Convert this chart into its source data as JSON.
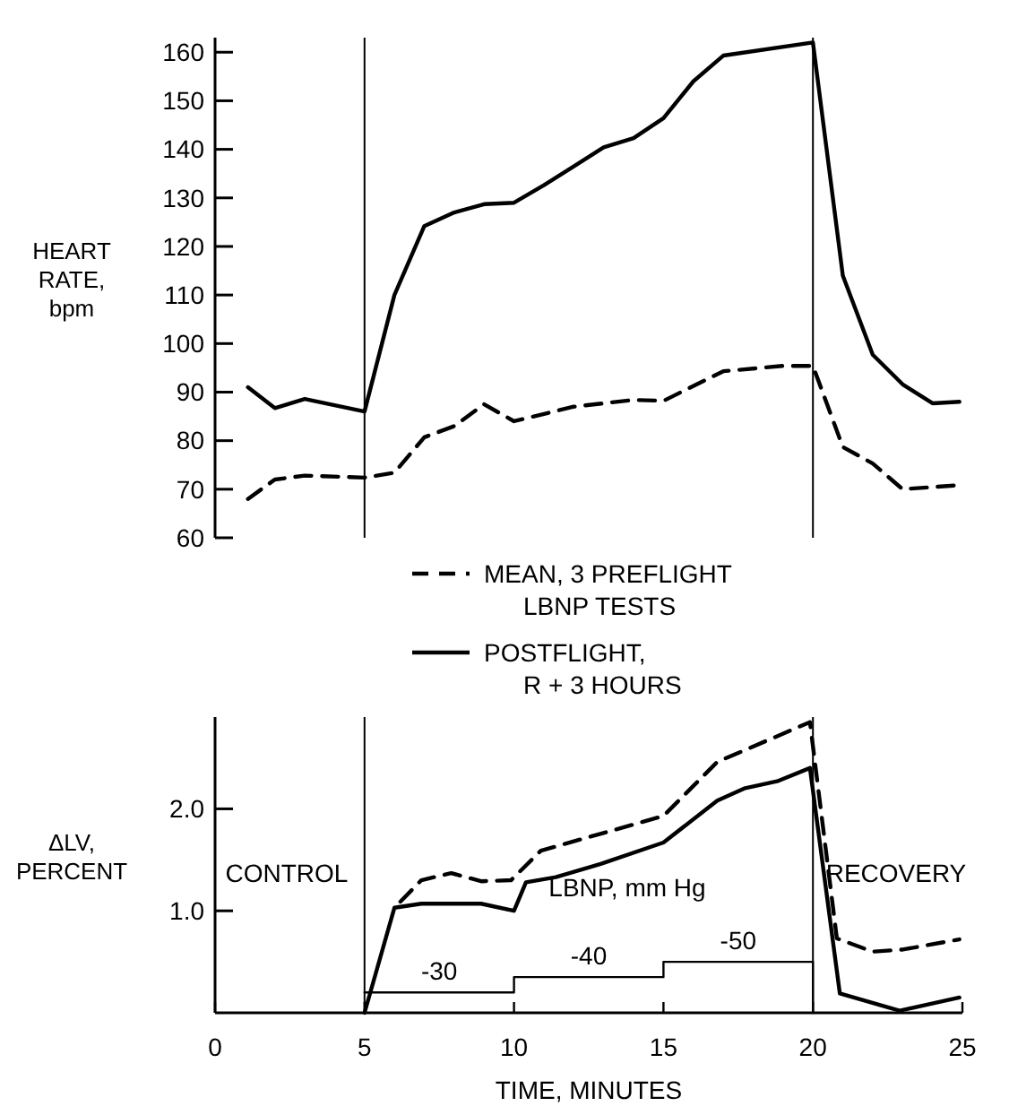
{
  "chart_data": [
    {
      "type": "line",
      "ylabel": "HEART RATE, bpm",
      "xlim": [
        0,
        25
      ],
      "ylim": [
        60,
        163
      ],
      "yticks": [
        60,
        70,
        80,
        90,
        100,
        110,
        120,
        130,
        140,
        150,
        160
      ],
      "tick_labels": "y",
      "legend": "bottom",
      "marker": "none",
      "ref_lines": [
        {
          "axis": "x",
          "value": 5,
          "color": "#000000"
        },
        {
          "axis": "x",
          "value": 20,
          "color": "#000000"
        }
      ],
      "series": [
        {
          "name": "MEAN, 3 PREFLIGHT\nLBNP TESTS",
          "color": "#000000",
          "line_style": "dashed",
          "x": [
            1.1,
            2,
            3,
            5,
            6,
            7,
            8,
            9,
            10,
            12,
            14,
            15,
            17,
            19,
            20,
            21,
            22,
            23,
            24.8
          ],
          "values": [
            68,
            72,
            72.8,
            72.4,
            73.4,
            80.7,
            83,
            87.5,
            84,
            87,
            88.4,
            88.2,
            94.3,
            95.4,
            95.4,
            78.7,
            75.3,
            70,
            70.8
          ]
        },
        {
          "name": "POSTFLIGHT,\nR + 3 HOURS",
          "color": "#000000",
          "line_style": "solid",
          "x": [
            1.1,
            2,
            3,
            5,
            6,
            7,
            8,
            9,
            10,
            11,
            12,
            13,
            14,
            15,
            16,
            17,
            20,
            21,
            22,
            23,
            24,
            24.9
          ],
          "values": [
            91,
            86.7,
            88.6,
            86,
            110,
            124.2,
            127,
            128.7,
            129,
            132.6,
            136.5,
            140.4,
            142.3,
            146.4,
            154,
            159.3,
            162,
            114,
            97.7,
            91.6,
            87.7,
            88
          ]
        }
      ]
    },
    {
      "type": "line",
      "xlabel": "TIME, MINUTES",
      "ylabel": "ΔLV, PERCENT",
      "xlim": [
        0,
        25
      ],
      "xticks": [
        0,
        5,
        10,
        15,
        20,
        25
      ],
      "ylim": [
        0,
        2.9
      ],
      "yticks": [
        {
          "value": 1,
          "label": "1.0"
        },
        {
          "value": 2,
          "label": "2.0"
        }
      ],
      "marker": "none",
      "ref_lines": [
        {
          "axis": "x",
          "value": 5,
          "color": "#000000"
        },
        {
          "axis": "x",
          "value": 20,
          "color": "#000000"
        }
      ],
      "annotations": [
        "CONTROL",
        "LBNP, mm Hg",
        "RECOVERY",
        {
          "text": "-30",
          "x": 7.5,
          "y": 0.2
        },
        {
          "text": "-40",
          "x": 12.5,
          "y": 0.35
        },
        {
          "text": "-50",
          "x": 17.5,
          "y": 0.5
        }
      ],
      "series": [
        {
          "color": "#000000",
          "line_style": "dashed",
          "x": [
            6.2,
            6.9,
            7.9,
            8.9,
            9.9,
            10.9,
            15,
            16.8,
            19.9,
            20.8,
            22,
            23,
            24.9
          ],
          "values": [
            1.09,
            1.3,
            1.37,
            1.29,
            1.3,
            1.59,
            1.93,
            2.46,
            2.85,
            0.73,
            0.6,
            0.62,
            0.72
          ]
        },
        {
          "color": "#000000",
          "line_style": "solid",
          "x": [
            5,
            6,
            6.9,
            8.9,
            10,
            10.4,
            11.4,
            12.9,
            15,
            16.8,
            17.7,
            18.8,
            19.9,
            20.9,
            22.9,
            24.9
          ],
          "values": [
            0,
            1.03,
            1.07,
            1.07,
            1,
            1.28,
            1.33,
            1.46,
            1.67,
            2.08,
            2.2,
            2.27,
            2.4,
            0.19,
            0.02,
            0.15
          ]
        },
        {
          "type": "step",
          "color": "#000000",
          "line_style": "solid",
          "x": [
            5,
            10,
            15,
            20
          ],
          "values": [
            0.2,
            0.35,
            0.5,
            0
          ]
        }
      ]
    }
  ]
}
